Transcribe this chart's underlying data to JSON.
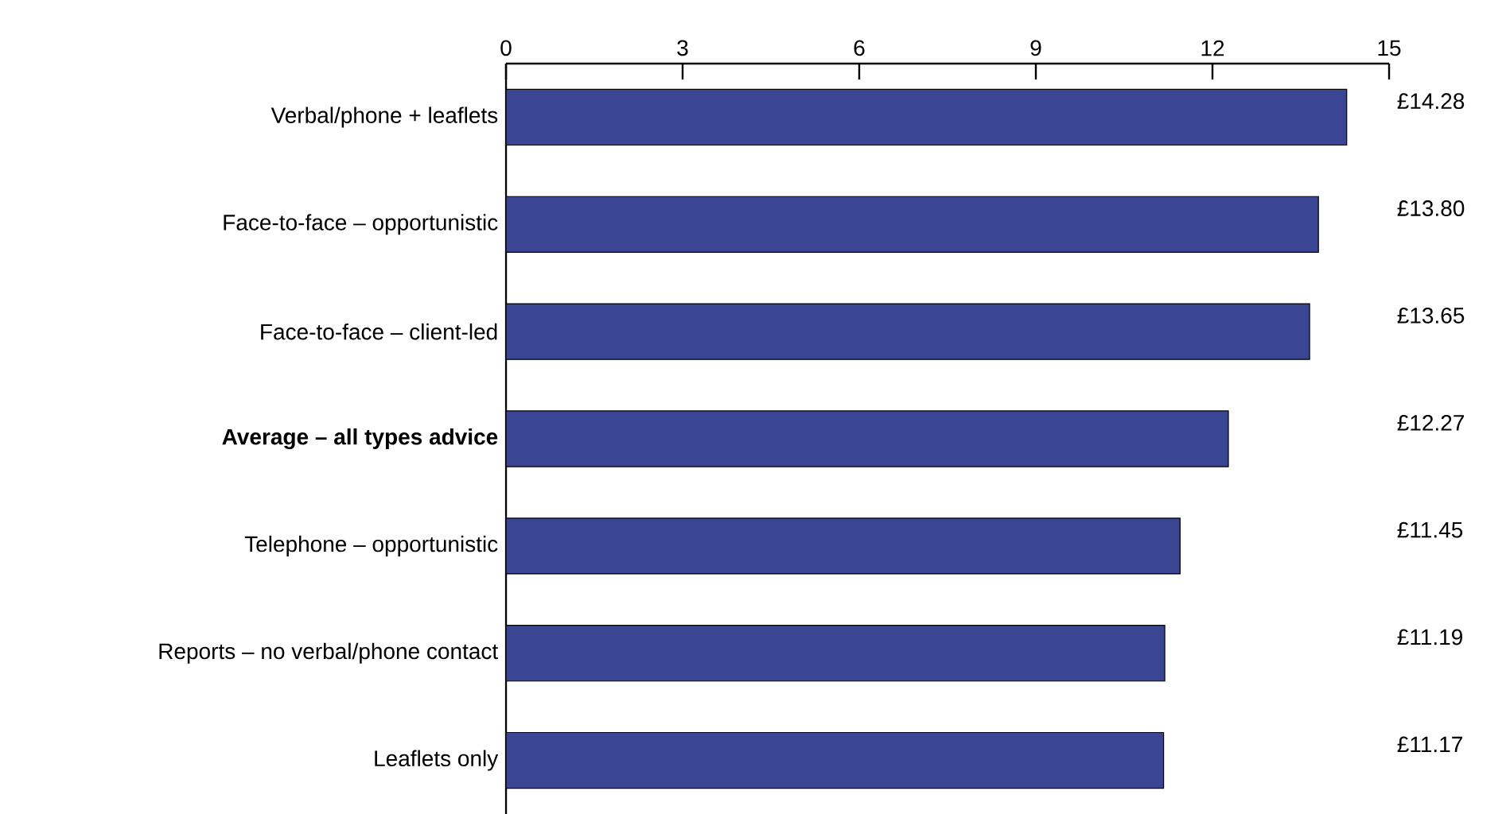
{
  "chart_data": {
    "type": "bar",
    "orientation": "horizontal",
    "categories": [
      "Verbal/phone + leaflets",
      "Face-to-face – opportunistic",
      "Face-to-face – client-led",
      "**Average – all types advice**",
      "Telephone – opportunistic",
      "Reports – no verbal/phone contact",
      "Leaflets only"
    ],
    "values": [
      14.28,
      13.8,
      13.65,
      12.27,
      11.45,
      11.19,
      11.17
    ],
    "value_labels": [
      "£14.28",
      "£13.80",
      "£13.65",
      "£12.27",
      "£11.45",
      "£11.19",
      "£11.17"
    ],
    "color": "#3a4694",
    "xlim": [
      0,
      15
    ],
    "xticks": [
      0,
      3,
      6,
      9,
      12,
      15
    ],
    "grid": false
  }
}
